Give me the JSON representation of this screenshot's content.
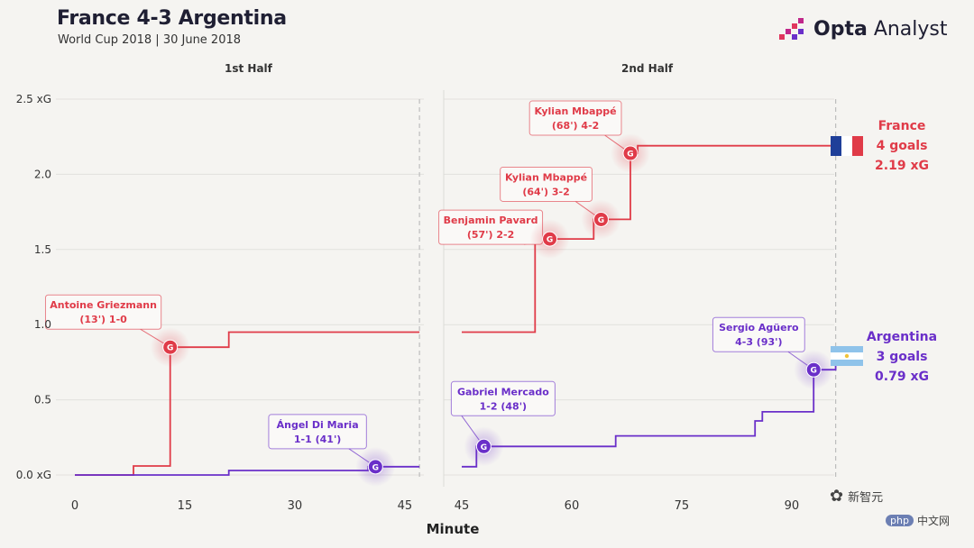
{
  "header": {
    "title": "France 4-3 Argentina",
    "subtitle": "World Cup 2018 | 30 June 2018"
  },
  "brand": {
    "bold": "Opta",
    "light": "Analyst"
  },
  "halves": {
    "first": "1st Half",
    "second": "2nd Half"
  },
  "colors": {
    "france": "#e03b48",
    "argentina": "#6a2fc9",
    "grid": "#e2e1dd"
  },
  "summary": {
    "france": {
      "name": "France",
      "goals": "4 goals",
      "xg": "2.19 xG"
    },
    "argentina": {
      "name": "Argentina",
      "goals": "3 goals",
      "xg": "0.79 xG"
    }
  },
  "watermark": {
    "wechat": "新智元",
    "php": "php",
    "site": "中文网"
  },
  "chart_data": {
    "type": "line",
    "title": "France 4-3 Argentina",
    "xlabel": "Minute",
    "ylabel": "xG",
    "ylim": [
      0,
      2.5
    ],
    "yticks": [
      "0.0 xG",
      "0.5",
      "1.0",
      "1.5",
      "2.0",
      "2.5 xG"
    ],
    "yvalues": [
      0,
      0.5,
      1.0,
      1.5,
      2.0,
      2.5
    ],
    "first_half": {
      "xlim": [
        0,
        48
      ],
      "xticks": [
        0,
        15,
        30,
        45
      ],
      "end_line": 47
    },
    "second_half": {
      "xlim": [
        45,
        97
      ],
      "xticks": [
        45,
        60,
        75,
        90
      ],
      "end_line": 96
    },
    "series": [
      {
        "name": "France",
        "first_half": [
          [
            0,
            0
          ],
          [
            8,
            0
          ],
          [
            8,
            0.06
          ],
          [
            13,
            0.06
          ],
          [
            13,
            0.85
          ],
          [
            21,
            0.85
          ],
          [
            21,
            0.95
          ],
          [
            47,
            0.95
          ]
        ],
        "second_half": [
          [
            45,
            0.95
          ],
          [
            55,
            0.95
          ],
          [
            55,
            1.57
          ],
          [
            57,
            1.57
          ],
          [
            57,
            1.57
          ],
          [
            63,
            1.57
          ],
          [
            63,
            1.7
          ],
          [
            64,
            1.7
          ],
          [
            68,
            1.7
          ],
          [
            68,
            2.14
          ],
          [
            69,
            2.14
          ],
          [
            69,
            2.19
          ],
          [
            97,
            2.19
          ]
        ]
      },
      {
        "name": "Argentina",
        "first_half": [
          [
            0,
            0
          ],
          [
            21,
            0
          ],
          [
            21,
            0.03
          ],
          [
            40,
            0.03
          ],
          [
            40,
            0.055
          ],
          [
            47,
            0.055
          ]
        ],
        "second_half": [
          [
            45,
            0.055
          ],
          [
            47,
            0.055
          ],
          [
            47,
            0.19
          ],
          [
            48,
            0.19
          ],
          [
            66,
            0.19
          ],
          [
            66,
            0.26
          ],
          [
            85,
            0.26
          ],
          [
            85,
            0.36
          ],
          [
            86,
            0.36
          ],
          [
            86,
            0.42
          ],
          [
            93,
            0.42
          ],
          [
            93,
            0.7
          ],
          [
            96,
            0.7
          ],
          [
            96,
            0.79
          ],
          [
            97,
            0.79
          ]
        ]
      }
    ],
    "goals": [
      {
        "team": "France",
        "half": "first",
        "minute": 13,
        "xg": 0.85,
        "label1": "Antoine Griezmann",
        "label2": "(13') 1-0",
        "box": "above-left"
      },
      {
        "team": "Argentina",
        "half": "first",
        "minute": 41,
        "xg": 0.055,
        "label1": "Ángel Di Maria",
        "label2": "1-1 (41')",
        "box": "above-left"
      },
      {
        "team": "Argentina",
        "half": "second",
        "minute": 48,
        "xg": 0.19,
        "label1": "Gabriel Mercado",
        "label2": "1-2 (48')",
        "box": "above"
      },
      {
        "team": "France",
        "half": "second",
        "minute": 57,
        "xg": 1.57,
        "label1": "Benjamin Pavard",
        "label2": "(57') 2-2",
        "box": "left"
      },
      {
        "team": "France",
        "half": "second",
        "minute": 64,
        "xg": 1.7,
        "label1": "Kylian Mbappé",
        "label2": "(64') 3-2",
        "box": "above-left"
      },
      {
        "team": "France",
        "half": "second",
        "minute": 68,
        "xg": 2.14,
        "label1": "Kylian Mbappé",
        "label2": "(68') 4-2",
        "box": "above-left"
      },
      {
        "team": "Argentina",
        "half": "second",
        "minute": 93,
        "xg": 0.7,
        "label1": "Sergio Agüero",
        "label2": "4-3 (93')",
        "box": "above-left"
      }
    ],
    "goal_marker": "G"
  }
}
